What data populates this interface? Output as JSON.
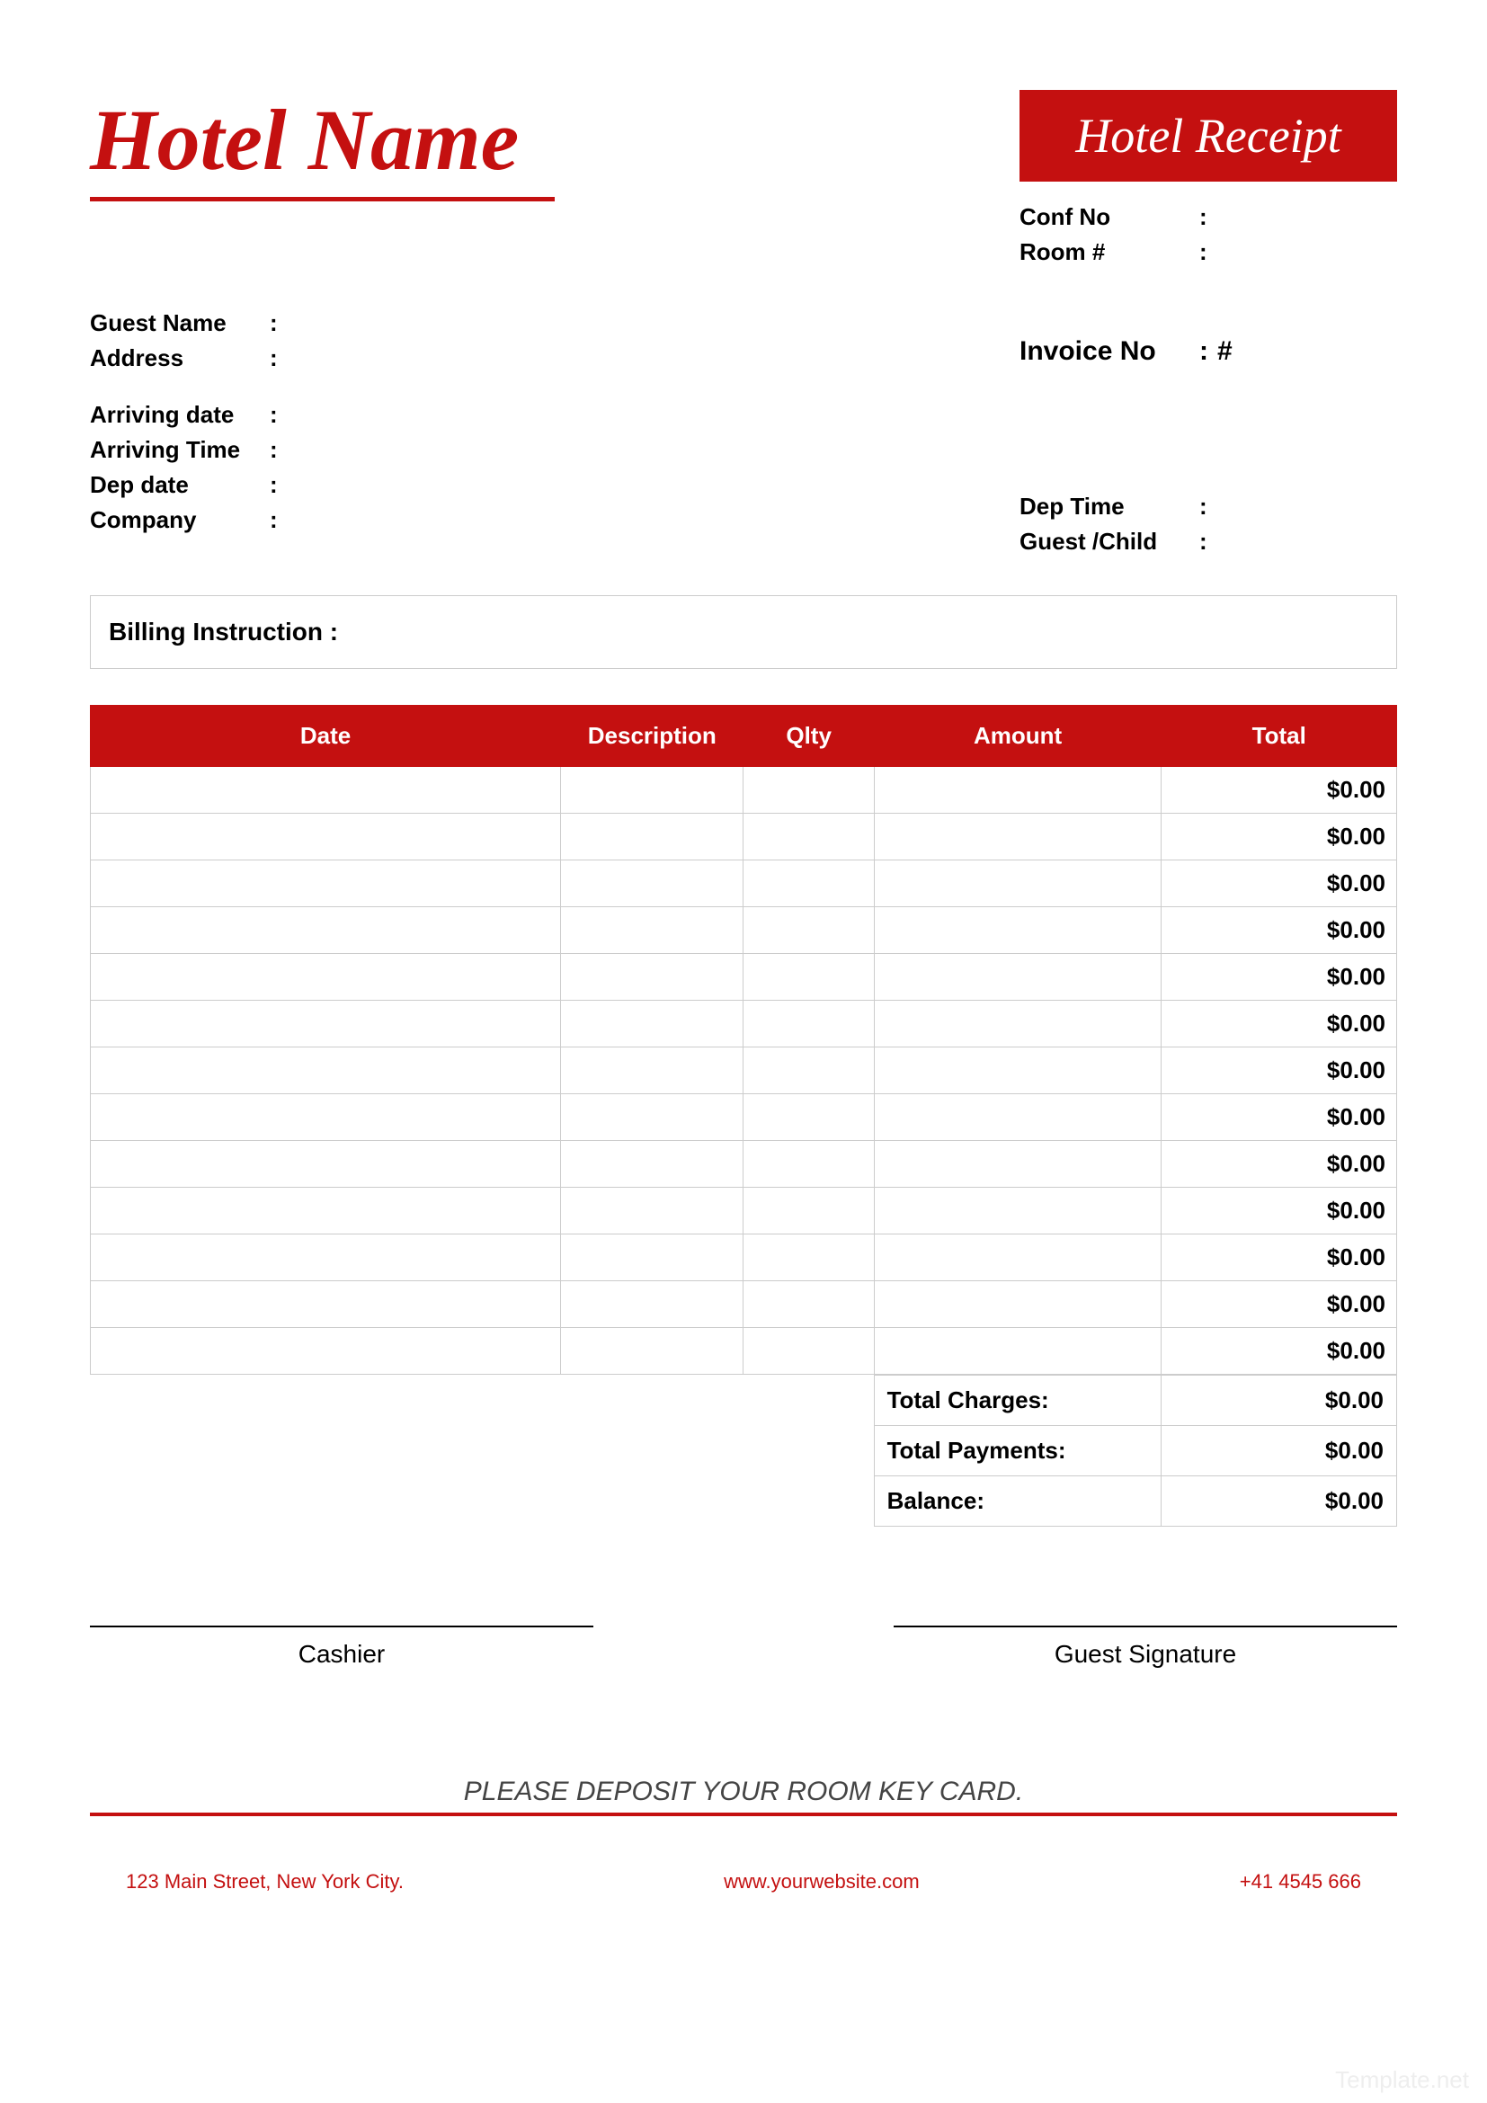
{
  "colors": {
    "accent": "#c41010",
    "border": "#cccccc",
    "text": "#000000",
    "white": "#ffffff"
  },
  "header": {
    "hotel_name": "Hotel Name",
    "badge": "Hotel Receipt"
  },
  "top_right_fields": {
    "conf_no": {
      "label": "Conf No",
      "value": ""
    },
    "room": {
      "label": "Room #",
      "value": ""
    },
    "invoice": {
      "label": "Invoice No",
      "value": "#"
    }
  },
  "guest_fields": {
    "guest_name": {
      "label": "Guest Name",
      "value": ""
    },
    "address": {
      "label": "Address",
      "value": ""
    },
    "arriving_date": {
      "label": "Arriving date",
      "value": ""
    },
    "arriving_time": {
      "label": "Arriving Time",
      "value": ""
    },
    "dep_date": {
      "label": "Dep date",
      "value": ""
    },
    "company": {
      "label": "Company",
      "value": ""
    }
  },
  "right_bottom_fields": {
    "dep_time": {
      "label": "Dep Time",
      "value": ""
    },
    "guest_child": {
      "label": "Guest /Child",
      "value": ""
    }
  },
  "billing_instruction_label": "Billing Instruction :",
  "table": {
    "columns": [
      "Date",
      "Description",
      "Qlty",
      "Amount",
      "Total"
    ],
    "rows": [
      {
        "date": "",
        "desc": "",
        "qty": "",
        "amount": "",
        "total": "$0.00"
      },
      {
        "date": "",
        "desc": "",
        "qty": "",
        "amount": "",
        "total": "$0.00"
      },
      {
        "date": "",
        "desc": "",
        "qty": "",
        "amount": "",
        "total": "$0.00"
      },
      {
        "date": "",
        "desc": "",
        "qty": "",
        "amount": "",
        "total": "$0.00"
      },
      {
        "date": "",
        "desc": "",
        "qty": "",
        "amount": "",
        "total": "$0.00"
      },
      {
        "date": "",
        "desc": "",
        "qty": "",
        "amount": "",
        "total": "$0.00"
      },
      {
        "date": "",
        "desc": "",
        "qty": "",
        "amount": "",
        "total": "$0.00"
      },
      {
        "date": "",
        "desc": "",
        "qty": "",
        "amount": "",
        "total": "$0.00"
      },
      {
        "date": "",
        "desc": "",
        "qty": "",
        "amount": "",
        "total": "$0.00"
      },
      {
        "date": "",
        "desc": "",
        "qty": "",
        "amount": "",
        "total": "$0.00"
      },
      {
        "date": "",
        "desc": "",
        "qty": "",
        "amount": "",
        "total": "$0.00"
      },
      {
        "date": "",
        "desc": "",
        "qty": "",
        "amount": "",
        "total": "$0.00"
      },
      {
        "date": "",
        "desc": "",
        "qty": "",
        "amount": "",
        "total": "$0.00"
      }
    ]
  },
  "totals": {
    "charges": {
      "label": "Total Charges:",
      "value": "$0.00"
    },
    "payments": {
      "label": "Total Payments:",
      "value": "$0.00"
    },
    "balance": {
      "label": "Balance:",
      "value": "$0.00"
    }
  },
  "signatures": {
    "cashier": "Cashier",
    "guest": "Guest Signature"
  },
  "deposit_message": "PLEASE DEPOSIT YOUR ROOM KEY CARD.",
  "footer": {
    "address": "123 Main Street, New York City.",
    "website": "www.yourwebsite.com",
    "phone": "+41 4545 666"
  },
  "watermark": "Template.net"
}
